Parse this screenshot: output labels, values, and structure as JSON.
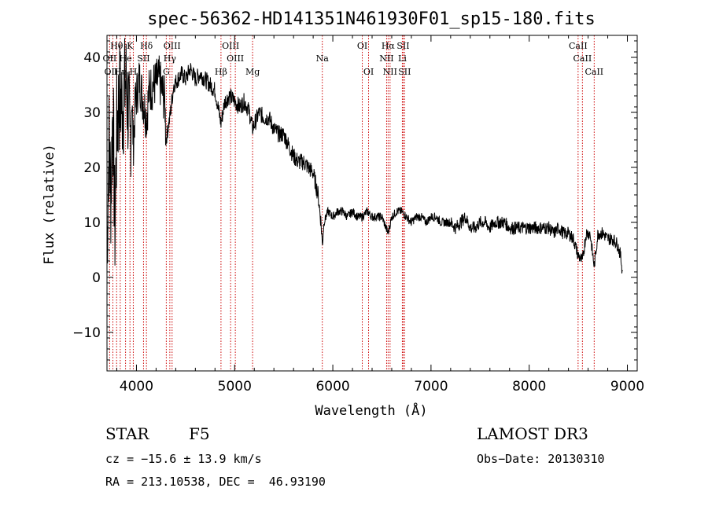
{
  "chart_data": {
    "type": "line",
    "title": "spec-56362-HD141351N461930F01_sp15-180.fits",
    "xlabel": "Wavelength (Å)",
    "ylabel": "Flux (relative)",
    "xlim": [
      3700,
      9100
    ],
    "ylim": [
      -17,
      44
    ],
    "xticks": [
      4000,
      5000,
      6000,
      7000,
      8000,
      9000
    ],
    "yticks": [
      -10,
      0,
      10,
      20,
      30,
      40
    ],
    "series": [
      {
        "name": "spectrum",
        "anchors": [
          [
            3700,
            5
          ],
          [
            3720,
            25
          ],
          [
            3740,
            15
          ],
          [
            3760,
            32
          ],
          [
            3780,
            8
          ],
          [
            3800,
            28
          ],
          [
            3830,
            33
          ],
          [
            3860,
            31
          ],
          [
            3890,
            36
          ],
          [
            3920,
            30
          ],
          [
            3934,
            22
          ],
          [
            3950,
            34
          ],
          [
            3968,
            24
          ],
          [
            3990,
            32
          ],
          [
            4030,
            36
          ],
          [
            4060,
            33
          ],
          [
            4102,
            29
          ],
          [
            4130,
            34
          ],
          [
            4180,
            35
          ],
          [
            4230,
            36
          ],
          [
            4290,
            32
          ],
          [
            4300,
            25
          ],
          [
            4340,
            29
          ],
          [
            4380,
            35
          ],
          [
            4420,
            36
          ],
          [
            4460,
            37
          ],
          [
            4500,
            36
          ],
          [
            4550,
            38
          ],
          [
            4600,
            36
          ],
          [
            4650,
            37
          ],
          [
            4700,
            36
          ],
          [
            4750,
            35
          ],
          [
            4800,
            34
          ],
          [
            4861,
            28
          ],
          [
            4900,
            32
          ],
          [
            4950,
            33
          ],
          [
            5000,
            32
          ],
          [
            5050,
            31
          ],
          [
            5100,
            32
          ],
          [
            5150,
            30
          ],
          [
            5183,
            27
          ],
          [
            5250,
            30
          ],
          [
            5300,
            29
          ],
          [
            5350,
            29
          ],
          [
            5400,
            27
          ],
          [
            5450,
            26
          ],
          [
            5500,
            26
          ],
          [
            5550,
            24
          ],
          [
            5600,
            22
          ],
          [
            5650,
            21
          ],
          [
            5700,
            21
          ],
          [
            5750,
            20
          ],
          [
            5800,
            19
          ],
          [
            5850,
            15
          ],
          [
            5880,
            10
          ],
          [
            5893,
            6
          ],
          [
            5910,
            10
          ],
          [
            5950,
            12
          ],
          [
            6000,
            11
          ],
          [
            6050,
            12
          ],
          [
            6100,
            12
          ],
          [
            6150,
            11
          ],
          [
            6200,
            12
          ],
          [
            6250,
            11
          ],
          [
            6300,
            11
          ],
          [
            6350,
            12
          ],
          [
            6400,
            11
          ],
          [
            6450,
            11
          ],
          [
            6500,
            11
          ],
          [
            6563,
            8
          ],
          [
            6600,
            11
          ],
          [
            6650,
            12
          ],
          [
            6700,
            12
          ],
          [
            6750,
            11
          ],
          [
            6800,
            10
          ],
          [
            6850,
            11
          ],
          [
            6900,
            11
          ],
          [
            6950,
            10
          ],
          [
            7000,
            11
          ],
          [
            7050,
            11
          ],
          [
            7100,
            10
          ],
          [
            7150,
            10
          ],
          [
            7200,
            10
          ],
          [
            7250,
            9
          ],
          [
            7300,
            10
          ],
          [
            7350,
            11
          ],
          [
            7400,
            9
          ],
          [
            7450,
            9
          ],
          [
            7500,
            10
          ],
          [
            7550,
            10
          ],
          [
            7600,
            9
          ],
          [
            7650,
            10
          ],
          [
            7700,
            10
          ],
          [
            7750,
            10
          ],
          [
            7800,
            9
          ],
          [
            7850,
            9
          ],
          [
            7900,
            9
          ],
          [
            7950,
            9
          ],
          [
            8000,
            9
          ],
          [
            8050,
            9
          ],
          [
            8100,
            9
          ],
          [
            8150,
            9
          ],
          [
            8200,
            9
          ],
          [
            8250,
            8
          ],
          [
            8300,
            9
          ],
          [
            8350,
            8
          ],
          [
            8400,
            8
          ],
          [
            8450,
            7
          ],
          [
            8498,
            4
          ],
          [
            8542,
            3
          ],
          [
            8580,
            8
          ],
          [
            8620,
            8
          ],
          [
            8662,
            2
          ],
          [
            8700,
            8
          ],
          [
            8750,
            8
          ],
          [
            8800,
            7
          ],
          [
            8850,
            7
          ],
          [
            8900,
            6
          ],
          [
            8930,
            4
          ],
          [
            8950,
            1
          ]
        ]
      }
    ],
    "spectral_lines": [
      {
        "label": "Hθ",
        "wave": 3798,
        "row": 0
      },
      {
        "label": "K",
        "wave": 3934,
        "row": 0
      },
      {
        "label": "Hδ",
        "wave": 4102,
        "row": 0
      },
      {
        "label": "OIII",
        "wave": 4363,
        "row": 0
      },
      {
        "label": "OIII",
        "wave": 4959,
        "row": 0
      },
      {
        "label": "OI",
        "wave": 6300,
        "row": 0
      },
      {
        "label": "Hα",
        "wave": 6563,
        "row": 0
      },
      {
        "label": "SII",
        "wave": 6716,
        "row": 0
      },
      {
        "label": "CaII",
        "wave": 8498,
        "row": 0
      },
      {
        "label": "OII",
        "wave": 3727,
        "row": 1
      },
      {
        "label": "He",
        "wave": 3889,
        "row": 1
      },
      {
        "label": "SII",
        "wave": 4072,
        "row": 1
      },
      {
        "label": "Hγ",
        "wave": 4340,
        "row": 1
      },
      {
        "label": "OIII",
        "wave": 5007,
        "row": 1
      },
      {
        "label": "Na",
        "wave": 5893,
        "row": 1
      },
      {
        "label": "NII",
        "wave": 6548,
        "row": 1
      },
      {
        "label": "Li",
        "wave": 6708,
        "row": 1
      },
      {
        "label": "CaII",
        "wave": 8542,
        "row": 1
      },
      {
        "label": "OIII",
        "wave": 3760,
        "row": 2
      },
      {
        "label": "Hη",
        "wave": 3835,
        "row": 2
      },
      {
        "label": "H",
        "wave": 3968,
        "row": 2
      },
      {
        "label": "G",
        "wave": 4304,
        "row": 2
      },
      {
        "label": "Hβ",
        "wave": 4861,
        "row": 2
      },
      {
        "label": "Mg",
        "wave": 5183,
        "row": 2
      },
      {
        "label": "OI",
        "wave": 6364,
        "row": 2
      },
      {
        "label": "NII",
        "wave": 6583,
        "row": 2
      },
      {
        "label": "SII",
        "wave": 6731,
        "row": 2
      },
      {
        "label": "CaII",
        "wave": 8662,
        "row": 2
      }
    ],
    "colors": {
      "spectrum": "#000000",
      "lines": "#cc0000",
      "axes": "#000000"
    }
  },
  "info": {
    "object_class": "STAR",
    "subclass": "F5",
    "survey": "LAMOST DR3",
    "redshift": "cz = −15.6 ± 13.9 km/s",
    "obs_date": "Obs−Date: 20130310",
    "coords": "RA = 213.10538, DEC =  46.93190"
  }
}
